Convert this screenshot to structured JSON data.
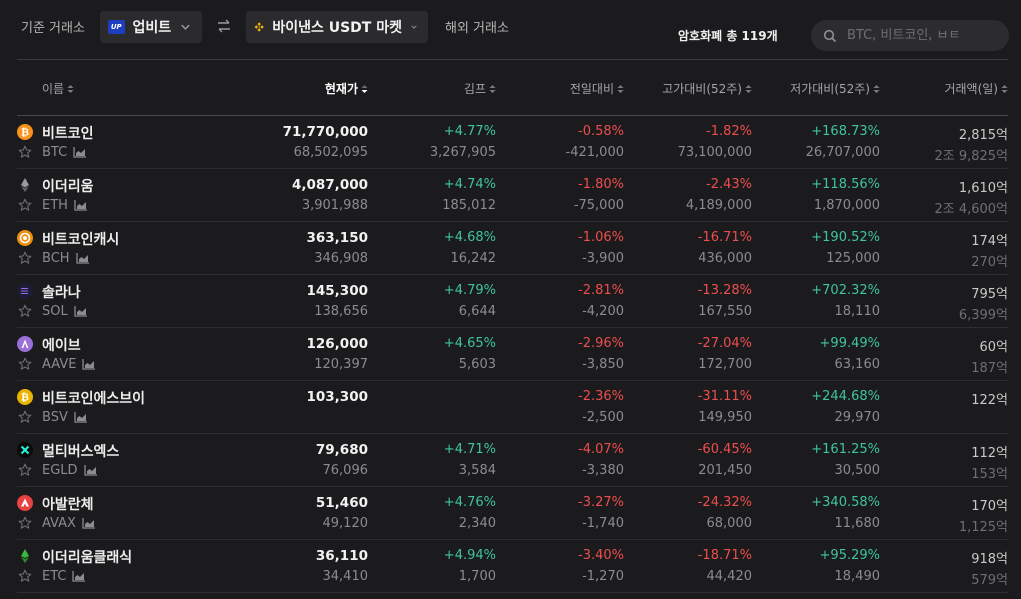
{
  "topbar": {
    "base_label": "기준 거래소",
    "base_exchange": "업비트",
    "target_exchange": "바이낸스 USDT 마켓",
    "overseas_label": "해외 거래소",
    "total_label": "암호화폐 총 119개",
    "search_placeholder": "BTC, 비트코인, ㅂㅌ"
  },
  "columns": {
    "name": "이름",
    "price": "현재가",
    "kimp": "김프",
    "prev": "전일대비",
    "high": "고가대비(52주)",
    "low": "저가대비(52주)",
    "volume": "거래액(일)"
  },
  "rows": [
    {
      "name": "비트코인",
      "symbol": "BTC",
      "icon": "bitcoin-icon",
      "color": "#f7931a",
      "price": "71,770,000",
      "price2": "68,502,095",
      "kimp": "+4.77%",
      "kimp2": "3,267,905",
      "prev": "-0.58%",
      "prev2": "-421,000",
      "high": "-1.82%",
      "high2": "73,100,000",
      "low": "+168.73%",
      "low2": "26,707,000",
      "vol": "2,815억",
      "vol2_jo": "2조",
      "vol2_eok": "9,825억"
    },
    {
      "name": "이더리움",
      "symbol": "ETH",
      "icon": "ethereum-icon",
      "color": "#8a8a8a",
      "price": "4,087,000",
      "price2": "3,901,988",
      "kimp": "+4.74%",
      "kimp2": "185,012",
      "prev": "-1.80%",
      "prev2": "-75,000",
      "high": "-2.43%",
      "high2": "4,189,000",
      "low": "+118.56%",
      "low2": "1,870,000",
      "vol": "1,610억",
      "vol2_jo": "2조",
      "vol2_eok": "4,600억"
    },
    {
      "name": "비트코인캐시",
      "symbol": "BCH",
      "icon": "bitcoin-cash-icon",
      "color": "#f0900e",
      "price": "363,150",
      "price2": "346,908",
      "kimp": "+4.68%",
      "kimp2": "16,242",
      "prev": "-1.06%",
      "prev2": "-3,900",
      "high": "-16.71%",
      "high2": "436,000",
      "low": "+190.52%",
      "low2": "125,000",
      "vol": "174억",
      "vol2_jo": "",
      "vol2_eok": "270억"
    },
    {
      "name": "솔라나",
      "symbol": "SOL",
      "icon": "solana-icon",
      "color": "#1c1c34",
      "price": "145,300",
      "price2": "138,656",
      "kimp": "+4.79%",
      "kimp2": "6,644",
      "prev": "-2.81%",
      "prev2": "-4,200",
      "high": "-13.28%",
      "high2": "167,550",
      "low": "+702.32%",
      "low2": "18,110",
      "vol": "795억",
      "vol2_jo": "",
      "vol2_eok": "6,399억"
    },
    {
      "name": "에이브",
      "symbol": "AAVE",
      "icon": "aave-icon",
      "color": "#9a6fd6",
      "price": "126,000",
      "price2": "120,397",
      "kimp": "+4.65%",
      "kimp2": "5,603",
      "prev": "-2.96%",
      "prev2": "-3,850",
      "high": "-27.04%",
      "high2": "172,700",
      "low": "+99.49%",
      "low2": "63,160",
      "vol": "60억",
      "vol2_jo": "",
      "vol2_eok": "187억"
    },
    {
      "name": "비트코인에스브이",
      "symbol": "BSV",
      "icon": "bitcoin-sv-icon",
      "color": "#eab300",
      "price": "103,300",
      "price2": "",
      "kimp": "",
      "kimp2": "",
      "prev": "-2.36%",
      "prev2": "-2,500",
      "high": "-31.11%",
      "high2": "149,950",
      "low": "+244.68%",
      "low2": "29,970",
      "vol": "122억",
      "vol2_jo": "",
      "vol2_eok": ""
    },
    {
      "name": "멀티버스엑스",
      "symbol": "EGLD",
      "icon": "multiversx-icon",
      "color": "#0a0a0a",
      "price": "79,680",
      "price2": "76,096",
      "kimp": "+4.71%",
      "kimp2": "3,584",
      "prev": "-4.07%",
      "prev2": "-3,380",
      "high": "-60.45%",
      "high2": "201,450",
      "low": "+161.25%",
      "low2": "30,500",
      "vol": "112억",
      "vol2_jo": "",
      "vol2_eok": "153억"
    },
    {
      "name": "아발란체",
      "symbol": "AVAX",
      "icon": "avalanche-icon",
      "color": "#e84142",
      "price": "51,460",
      "price2": "49,120",
      "kimp": "+4.76%",
      "kimp2": "2,340",
      "prev": "-3.27%",
      "prev2": "-1,740",
      "high": "-24.32%",
      "high2": "68,000",
      "low": "+340.58%",
      "low2": "11,680",
      "vol": "170억",
      "vol2_jo": "",
      "vol2_eok": "1,125억"
    },
    {
      "name": "이더리움클래식",
      "symbol": "ETC",
      "icon": "ethereum-classic-icon",
      "color": "#3ab83a",
      "price": "36,110",
      "price2": "34,410",
      "kimp": "+4.94%",
      "kimp2": "1,700",
      "prev": "-3.40%",
      "prev2": "-1,270",
      "high": "-18.71%",
      "high2": "44,420",
      "low": "+95.29%",
      "low2": "18,490",
      "vol": "918억",
      "vol2_jo": "",
      "vol2_eok": "579억"
    }
  ]
}
